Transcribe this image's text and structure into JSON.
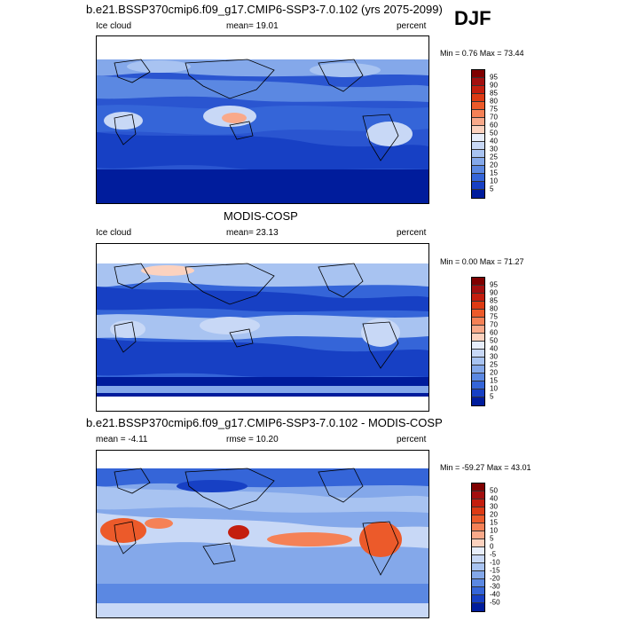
{
  "season": "DJF",
  "panels": [
    {
      "title": "b.e21.BSSP370cmip6.f09_g17.CMIP6-SSP3-7.0.102 (yrs 2075-2099)",
      "left_label": "Ice cloud",
      "center_label": "mean=  19.01",
      "right_label": "percent",
      "minmax": "Min =   0.76 Max =  73.44",
      "colorbar": {
        "labels": [
          "95",
          "90",
          "85",
          "80",
          "75",
          "70",
          "60",
          "50",
          "40",
          "30",
          "25",
          "20",
          "15",
          "10",
          "5"
        ],
        "colors": [
          "#7f0000",
          "#a30f0f",
          "#c41e0e",
          "#dd3b14",
          "#ec5a2a",
          "#f58156",
          "#f9a98a",
          "#fcd2bf",
          "#e8eefb",
          "#c8d8f6",
          "#a8c3f1",
          "#84a8ea",
          "#5b88e2",
          "#3565d8",
          "#1740c4",
          "#001c9c"
        ]
      }
    },
    {
      "title": "MODIS-COSP",
      "left_label": "Ice cloud",
      "center_label": "mean=  23.13",
      "right_label": "percent",
      "minmax": "Min =   0.00 Max =  71.27",
      "colorbar": {
        "labels": [
          "95",
          "90",
          "85",
          "80",
          "75",
          "70",
          "60",
          "50",
          "40",
          "30",
          "25",
          "20",
          "15",
          "10",
          "5"
        ],
        "colors": [
          "#7f0000",
          "#a30f0f",
          "#c41e0e",
          "#dd3b14",
          "#ec5a2a",
          "#f58156",
          "#f9a98a",
          "#fcd2bf",
          "#e8eefb",
          "#c8d8f6",
          "#a8c3f1",
          "#84a8ea",
          "#5b88e2",
          "#3565d8",
          "#1740c4",
          "#001c9c"
        ]
      }
    },
    {
      "title": "b.e21.BSSP370cmip6.f09_g17.CMIP6-SSP3-7.0.102 - MODIS-COSP",
      "left_label": "mean =  -4.11",
      "center_label": "rmse =  10.20",
      "right_label": "percent",
      "minmax": "Min = -59.27 Max =  43.01",
      "colorbar": {
        "labels": [
          "50",
          "40",
          "30",
          "20",
          "15",
          "10",
          "5",
          "0",
          "-5",
          "-10",
          "-15",
          "-20",
          "-30",
          "-40",
          "-50"
        ],
        "colors": [
          "#7f0000",
          "#a30f0f",
          "#c41e0e",
          "#dd3b14",
          "#ec5a2a",
          "#f58156",
          "#f9a98a",
          "#fcd2bf",
          "#e8eefb",
          "#c8d8f6",
          "#a8c3f1",
          "#84a8ea",
          "#5b88e2",
          "#3565d8",
          "#1740c4",
          "#001c9c"
        ]
      }
    }
  ]
}
